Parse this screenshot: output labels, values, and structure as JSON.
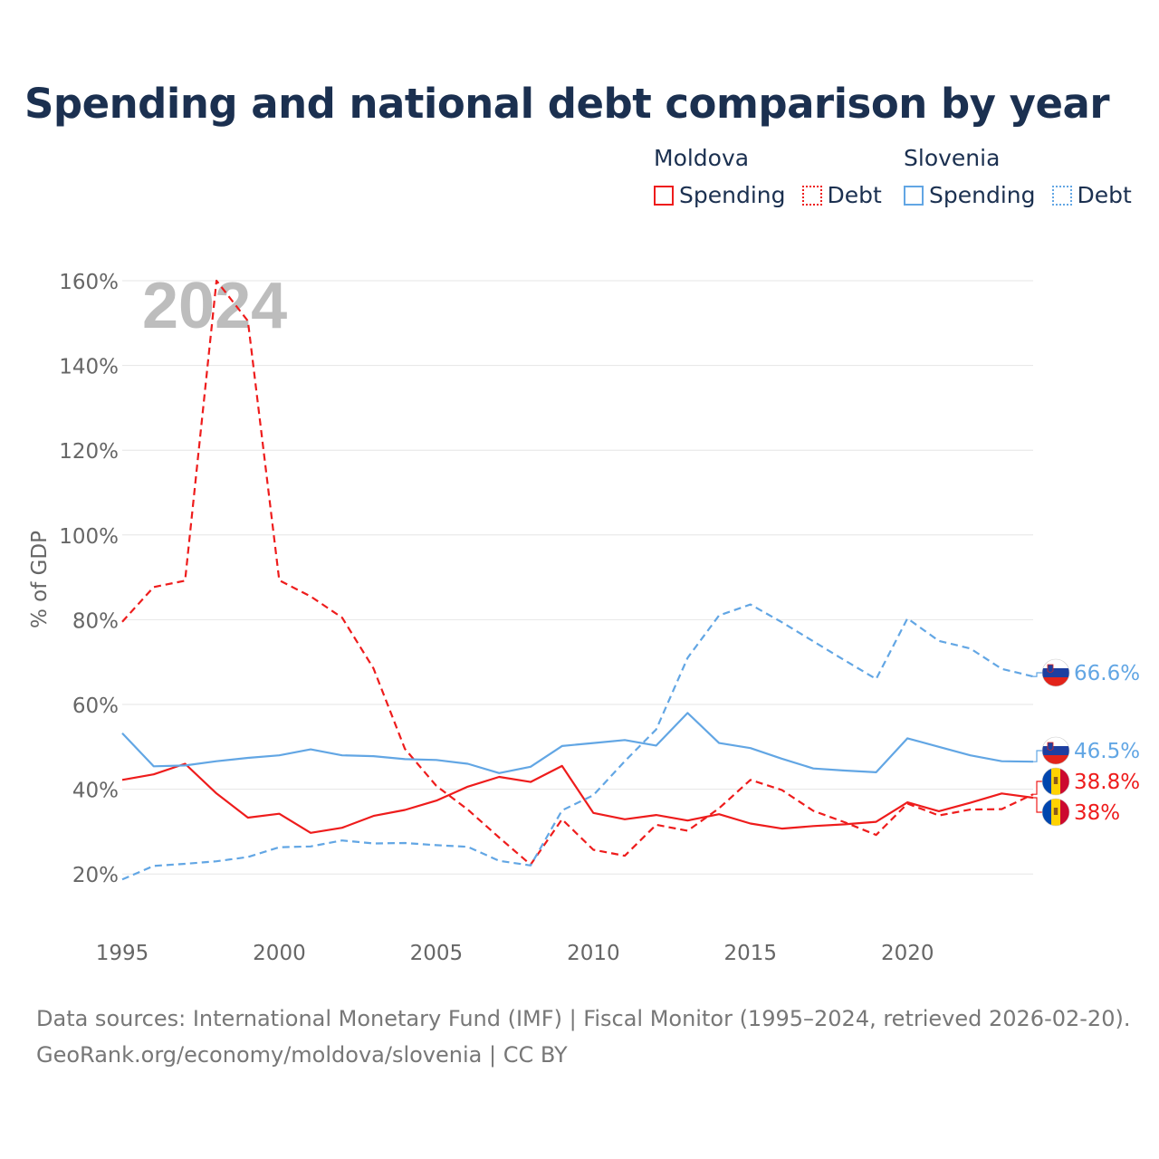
{
  "title": "Spending and national debt comparison by year",
  "legend": {
    "groups": [
      {
        "country": "Moldova",
        "color": "#ee1c1c",
        "items": [
          "Spending",
          "Debt"
        ]
      },
      {
        "country": "Slovenia",
        "color": "#62a6e4",
        "items": [
          "Spending",
          "Debt"
        ]
      }
    ]
  },
  "year_watermark": "2024",
  "footer": {
    "line1": "Data sources: International Monetary Fund (IMF) | Fiscal Monitor (1995–2024, retrieved 2026-02-20).",
    "line2": "GeoRank.org/economy/moldova/slovenia | CC BY"
  },
  "chart_data": {
    "type": "line",
    "ylabel": "% of GDP",
    "ylim": [
      10,
      165
    ],
    "yticks": [
      20,
      40,
      60,
      80,
      100,
      120,
      140,
      160
    ],
    "ytick_labels": [
      "20%",
      "40%",
      "60%",
      "80%",
      "100%",
      "120%",
      "140%",
      "160%"
    ],
    "xlim": [
      1995,
      2024
    ],
    "xticks": [
      1995,
      2000,
      2005,
      2010,
      2015,
      2020
    ],
    "xtick_labels": [
      "1995",
      "2000",
      "2005",
      "2010",
      "2015",
      "2020"
    ],
    "x": [
      1995,
      1996,
      1997,
      1998,
      1999,
      2000,
      2001,
      2002,
      2003,
      2004,
      2005,
      2006,
      2007,
      2008,
      2009,
      2010,
      2011,
      2012,
      2013,
      2014,
      2015,
      2016,
      2017,
      2018,
      2019,
      2020,
      2021,
      2022,
      2023,
      2024
    ],
    "series": [
      {
        "name": "Moldova Spending",
        "country": "Moldova",
        "kind": "Spending",
        "color": "#ee1c1c",
        "dash": "solid",
        "values": [
          42.2,
          43.5,
          46.0,
          39.0,
          33.3,
          34.2,
          29.7,
          30.9,
          33.7,
          35.1,
          37.3,
          40.6,
          42.9,
          41.7,
          45.5,
          34.4,
          32.9,
          33.9,
          32.6,
          34.1,
          31.9,
          30.7,
          31.3,
          31.7,
          32.3,
          36.9,
          34.8,
          36.8,
          39.0,
          38.0
        ],
        "end_label": "38%"
      },
      {
        "name": "Moldova Debt",
        "country": "Moldova",
        "kind": "Debt",
        "color": "#ee1c1c",
        "dash": "dashed",
        "values": [
          79.5,
          87.7,
          89.2,
          160.0,
          150.5,
          89.3,
          85.5,
          80.5,
          68.5,
          49.5,
          40.8,
          35.2,
          28.6,
          22.2,
          32.9,
          25.7,
          24.3,
          31.6,
          30.2,
          35.5,
          42.2,
          39.8,
          34.9,
          32.2,
          29.2,
          36.6,
          33.8,
          35.2,
          35.3,
          38.8
        ],
        "end_label": "38.8%"
      },
      {
        "name": "Slovenia Spending",
        "country": "Slovenia",
        "kind": "Spending",
        "color": "#62a6e4",
        "dash": "solid",
        "values": [
          53.2,
          45.4,
          45.6,
          46.6,
          47.4,
          48.0,
          49.4,
          48.0,
          47.8,
          47.1,
          46.9,
          46.0,
          43.8,
          45.3,
          50.2,
          50.9,
          51.6,
          50.3,
          58.0,
          50.9,
          49.7,
          47.2,
          44.9,
          44.4,
          44.0,
          52.0,
          50.0,
          48.0,
          46.6,
          46.5
        ],
        "end_label": "46.5%"
      },
      {
        "name": "Slovenia Debt",
        "country": "Slovenia",
        "kind": "Debt",
        "color": "#62a6e4",
        "dash": "dashed",
        "values": [
          18.7,
          21.9,
          22.4,
          23.0,
          24.0,
          26.3,
          26.5,
          27.9,
          27.2,
          27.3,
          26.8,
          26.4,
          23.1,
          22.0,
          35.0,
          38.6,
          46.6,
          54.1,
          71.0,
          81.0,
          83.6,
          79.4,
          74.9,
          70.4,
          66.0,
          80.3,
          75.0,
          73.2,
          68.4,
          66.6
        ],
        "end_label": "66.6%"
      }
    ]
  }
}
